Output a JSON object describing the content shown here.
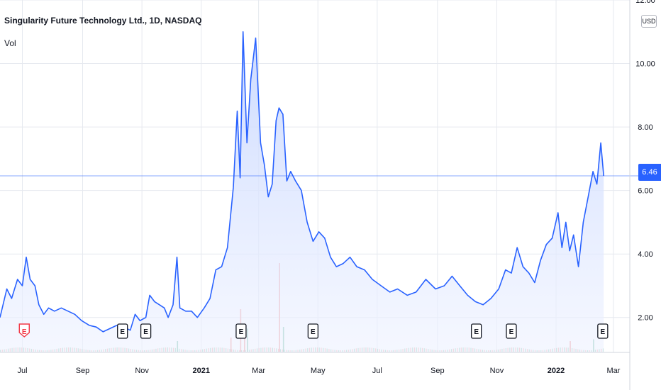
{
  "legend": {
    "title": "Singularity Future Technology Ltd., 1D, NASDAQ",
    "volume_label": "Vol"
  },
  "currency": "USD",
  "last_price": "6.46",
  "colors": {
    "line": "#2962ff",
    "fill_top": "#c9d8ff",
    "grid": "#e6e9ef",
    "vol_up": "#89c9b4",
    "vol_down": "#f3a3a3",
    "price_tag": "#2962ff",
    "axis_text": "#131722"
  },
  "chart_data": {
    "type": "area",
    "title": "Singularity Future Technology Ltd., 1D, NASDAQ",
    "ylim": [
      0.9,
      12.0
    ],
    "yticks": [
      "2.00",
      "4.00",
      "6.00",
      "8.00",
      "10.00",
      "12.00"
    ],
    "xticks": [
      {
        "label": "Jul",
        "date": "2020-07-01"
      },
      {
        "label": "Sep",
        "date": "2020-09-01"
      },
      {
        "label": "Nov",
        "date": "2020-11-01"
      },
      {
        "label": "2021",
        "date": "2021-01-01"
      },
      {
        "label": "Mar",
        "date": "2021-03-01"
      },
      {
        "label": "May",
        "date": "2021-05-01"
      },
      {
        "label": "Jul",
        "date": "2021-07-01"
      },
      {
        "label": "Sep",
        "date": "2021-09-01"
      },
      {
        "label": "Nov",
        "date": "2021-11-01"
      },
      {
        "label": "2022",
        "date": "2022-01-01"
      },
      {
        "label": "Mar",
        "date": "2022-03-01"
      }
    ],
    "xlim": [
      "2020-06-08",
      "2022-03-12"
    ],
    "current_price": 6.46,
    "earnings_markers": [
      "2020-07-03",
      "2020-10-12",
      "2020-11-05",
      "2021-02-11",
      "2021-04-26",
      "2021-10-11",
      "2021-11-16",
      "2022-02-18"
    ],
    "series": [
      {
        "points": [
          [
            "2020-06-08",
            2.0
          ],
          [
            "2020-06-15",
            2.9
          ],
          [
            "2020-06-20",
            2.6
          ],
          [
            "2020-06-26",
            3.2
          ],
          [
            "2020-07-01",
            3.0
          ],
          [
            "2020-07-05",
            3.9
          ],
          [
            "2020-07-09",
            3.2
          ],
          [
            "2020-07-14",
            3.0
          ],
          [
            "2020-07-18",
            2.4
          ],
          [
            "2020-07-23",
            2.1
          ],
          [
            "2020-07-28",
            2.3
          ],
          [
            "2020-08-03",
            2.2
          ],
          [
            "2020-08-10",
            2.3
          ],
          [
            "2020-08-17",
            2.2
          ],
          [
            "2020-08-24",
            2.1
          ],
          [
            "2020-08-31",
            1.9
          ],
          [
            "2020-09-08",
            1.75
          ],
          [
            "2020-09-15",
            1.7
          ],
          [
            "2020-09-22",
            1.55
          ],
          [
            "2020-09-29",
            1.65
          ],
          [
            "2020-10-06",
            1.75
          ],
          [
            "2020-10-13",
            1.7
          ],
          [
            "2020-10-20",
            1.6
          ],
          [
            "2020-10-25",
            2.1
          ],
          [
            "2020-10-30",
            1.9
          ],
          [
            "2020-11-05",
            2.0
          ],
          [
            "2020-11-09",
            2.7
          ],
          [
            "2020-11-14",
            2.5
          ],
          [
            "2020-11-19",
            2.4
          ],
          [
            "2020-11-24",
            2.3
          ],
          [
            "2020-11-28",
            2.0
          ],
          [
            "2020-12-03",
            2.4
          ],
          [
            "2020-12-07",
            3.9
          ],
          [
            "2020-12-10",
            2.3
          ],
          [
            "2020-12-16",
            2.2
          ],
          [
            "2020-12-22",
            2.2
          ],
          [
            "2020-12-28",
            2.0
          ],
          [
            "2021-01-04",
            2.3
          ],
          [
            "2021-01-10",
            2.6
          ],
          [
            "2021-01-16",
            3.5
          ],
          [
            "2021-01-22",
            3.6
          ],
          [
            "2021-01-28",
            4.2
          ],
          [
            "2021-02-03",
            6.1
          ],
          [
            "2021-02-07",
            8.5
          ],
          [
            "2021-02-10",
            6.4
          ],
          [
            "2021-02-13",
            11.0
          ],
          [
            "2021-02-17",
            7.5
          ],
          [
            "2021-02-21",
            9.5
          ],
          [
            "2021-02-26",
            10.8
          ],
          [
            "2021-03-03",
            7.5
          ],
          [
            "2021-03-07",
            6.8
          ],
          [
            "2021-03-11",
            5.8
          ],
          [
            "2021-03-15",
            6.2
          ],
          [
            "2021-03-19",
            8.2
          ],
          [
            "2021-03-22",
            8.6
          ],
          [
            "2021-03-26",
            8.4
          ],
          [
            "2021-03-30",
            6.3
          ],
          [
            "2021-04-03",
            6.6
          ],
          [
            "2021-04-08",
            6.3
          ],
          [
            "2021-04-14",
            6.0
          ],
          [
            "2021-04-20",
            5.0
          ],
          [
            "2021-04-26",
            4.4
          ],
          [
            "2021-05-02",
            4.7
          ],
          [
            "2021-05-08",
            4.5
          ],
          [
            "2021-05-14",
            3.9
          ],
          [
            "2021-05-20",
            3.6
          ],
          [
            "2021-05-27",
            3.7
          ],
          [
            "2021-06-03",
            3.9
          ],
          [
            "2021-06-10",
            3.6
          ],
          [
            "2021-06-18",
            3.5
          ],
          [
            "2021-06-26",
            3.2
          ],
          [
            "2021-07-05",
            3.0
          ],
          [
            "2021-07-14",
            2.8
          ],
          [
            "2021-07-22",
            2.9
          ],
          [
            "2021-08-01",
            2.7
          ],
          [
            "2021-08-10",
            2.8
          ],
          [
            "2021-08-20",
            3.2
          ],
          [
            "2021-08-30",
            2.9
          ],
          [
            "2021-09-08",
            3.0
          ],
          [
            "2021-09-16",
            3.3
          ],
          [
            "2021-09-24",
            3.0
          ],
          [
            "2021-10-02",
            2.7
          ],
          [
            "2021-10-10",
            2.5
          ],
          [
            "2021-10-18",
            2.4
          ],
          [
            "2021-10-26",
            2.6
          ],
          [
            "2021-11-03",
            2.9
          ],
          [
            "2021-11-10",
            3.5
          ],
          [
            "2021-11-16",
            3.4
          ],
          [
            "2021-11-22",
            4.2
          ],
          [
            "2021-11-28",
            3.6
          ],
          [
            "2021-12-04",
            3.4
          ],
          [
            "2021-12-10",
            3.1
          ],
          [
            "2021-12-16",
            3.8
          ],
          [
            "2021-12-22",
            4.3
          ],
          [
            "2021-12-28",
            4.5
          ],
          [
            "2022-01-03",
            5.3
          ],
          [
            "2022-01-07",
            4.2
          ],
          [
            "2022-01-11",
            5.0
          ],
          [
            "2022-01-15",
            4.1
          ],
          [
            "2022-01-19",
            4.6
          ],
          [
            "2022-01-24",
            3.6
          ],
          [
            "2022-01-29",
            5.0
          ],
          [
            "2022-02-03",
            5.8
          ],
          [
            "2022-02-08",
            6.6
          ],
          [
            "2022-02-12",
            6.2
          ],
          [
            "2022-02-16",
            7.5
          ],
          [
            "2022-02-19",
            6.46
          ]
        ]
      }
    ],
    "volume_scale_max": 1.0,
    "volume_highlights": [
      {
        "date": "2021-02-10",
        "value": 0.48,
        "dir": "down"
      },
      {
        "date": "2021-02-14",
        "value": 0.32,
        "dir": "down"
      },
      {
        "date": "2021-02-17",
        "value": 0.26,
        "dir": "up"
      },
      {
        "date": "2021-03-22",
        "value": 1.0,
        "dir": "down"
      },
      {
        "date": "2021-03-26",
        "value": 0.28,
        "dir": "up"
      },
      {
        "date": "2020-12-07",
        "value": 0.12,
        "dir": "up"
      },
      {
        "date": "2021-01-31",
        "value": 0.16,
        "dir": "down"
      },
      {
        "date": "2022-02-08",
        "value": 0.14,
        "dir": "up"
      },
      {
        "date": "2022-01-15",
        "value": 0.12,
        "dir": "down"
      }
    ]
  }
}
